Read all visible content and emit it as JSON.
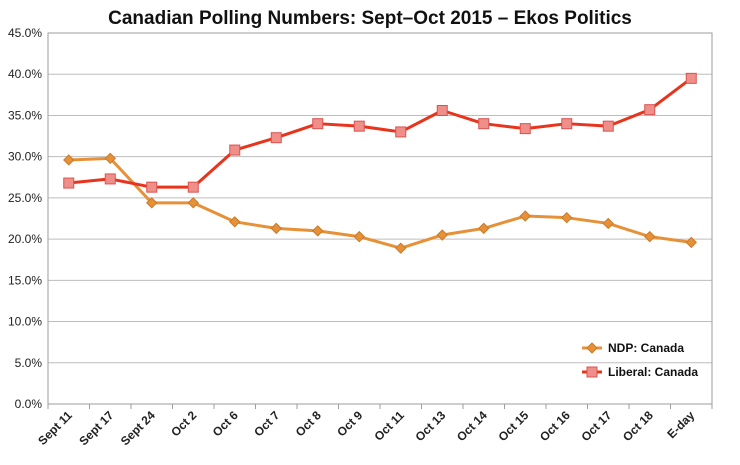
{
  "chart_data": {
    "type": "line",
    "title": "Canadian Polling Numbers: Sept–Oct 2015 – Ekos Politics",
    "xlabel": "",
    "ylabel": "",
    "ylim": [
      0,
      45
    ],
    "yticks": [
      "0.0%",
      "5.0%",
      "10.0%",
      "15.0%",
      "20.0%",
      "25.0%",
      "30.0%",
      "35.0%",
      "40.0%",
      "45.0%"
    ],
    "grid": true,
    "legend_position": "bottom-right",
    "categories": [
      "Sept 11",
      "Sept 17",
      "Sept 24",
      "Oct 2",
      "Oct 6",
      "Oct 7",
      "Oct 8",
      "Oct 9",
      "Oct 11",
      "Oct 13",
      "Oct 14",
      "Oct 15",
      "Oct 16",
      "Oct 17",
      "Oct 18",
      "E-day"
    ],
    "series": [
      {
        "name": "NDP: Canada",
        "color": "#E69138",
        "marker": "diamond",
        "values": [
          29.6,
          29.8,
          24.4,
          24.4,
          22.1,
          21.3,
          21.0,
          20.3,
          18.9,
          20.5,
          21.3,
          22.8,
          22.6,
          21.9,
          20.3,
          19.6
        ]
      },
      {
        "name": "Liberal: Canada",
        "color": "#E8341C",
        "marker": "square",
        "marker_color": "#F08F8A",
        "values": [
          26.8,
          27.3,
          26.3,
          26.3,
          30.8,
          32.3,
          34.0,
          33.7,
          33.0,
          35.6,
          34.0,
          33.4,
          34.0,
          33.7,
          35.7,
          39.5
        ]
      }
    ]
  }
}
